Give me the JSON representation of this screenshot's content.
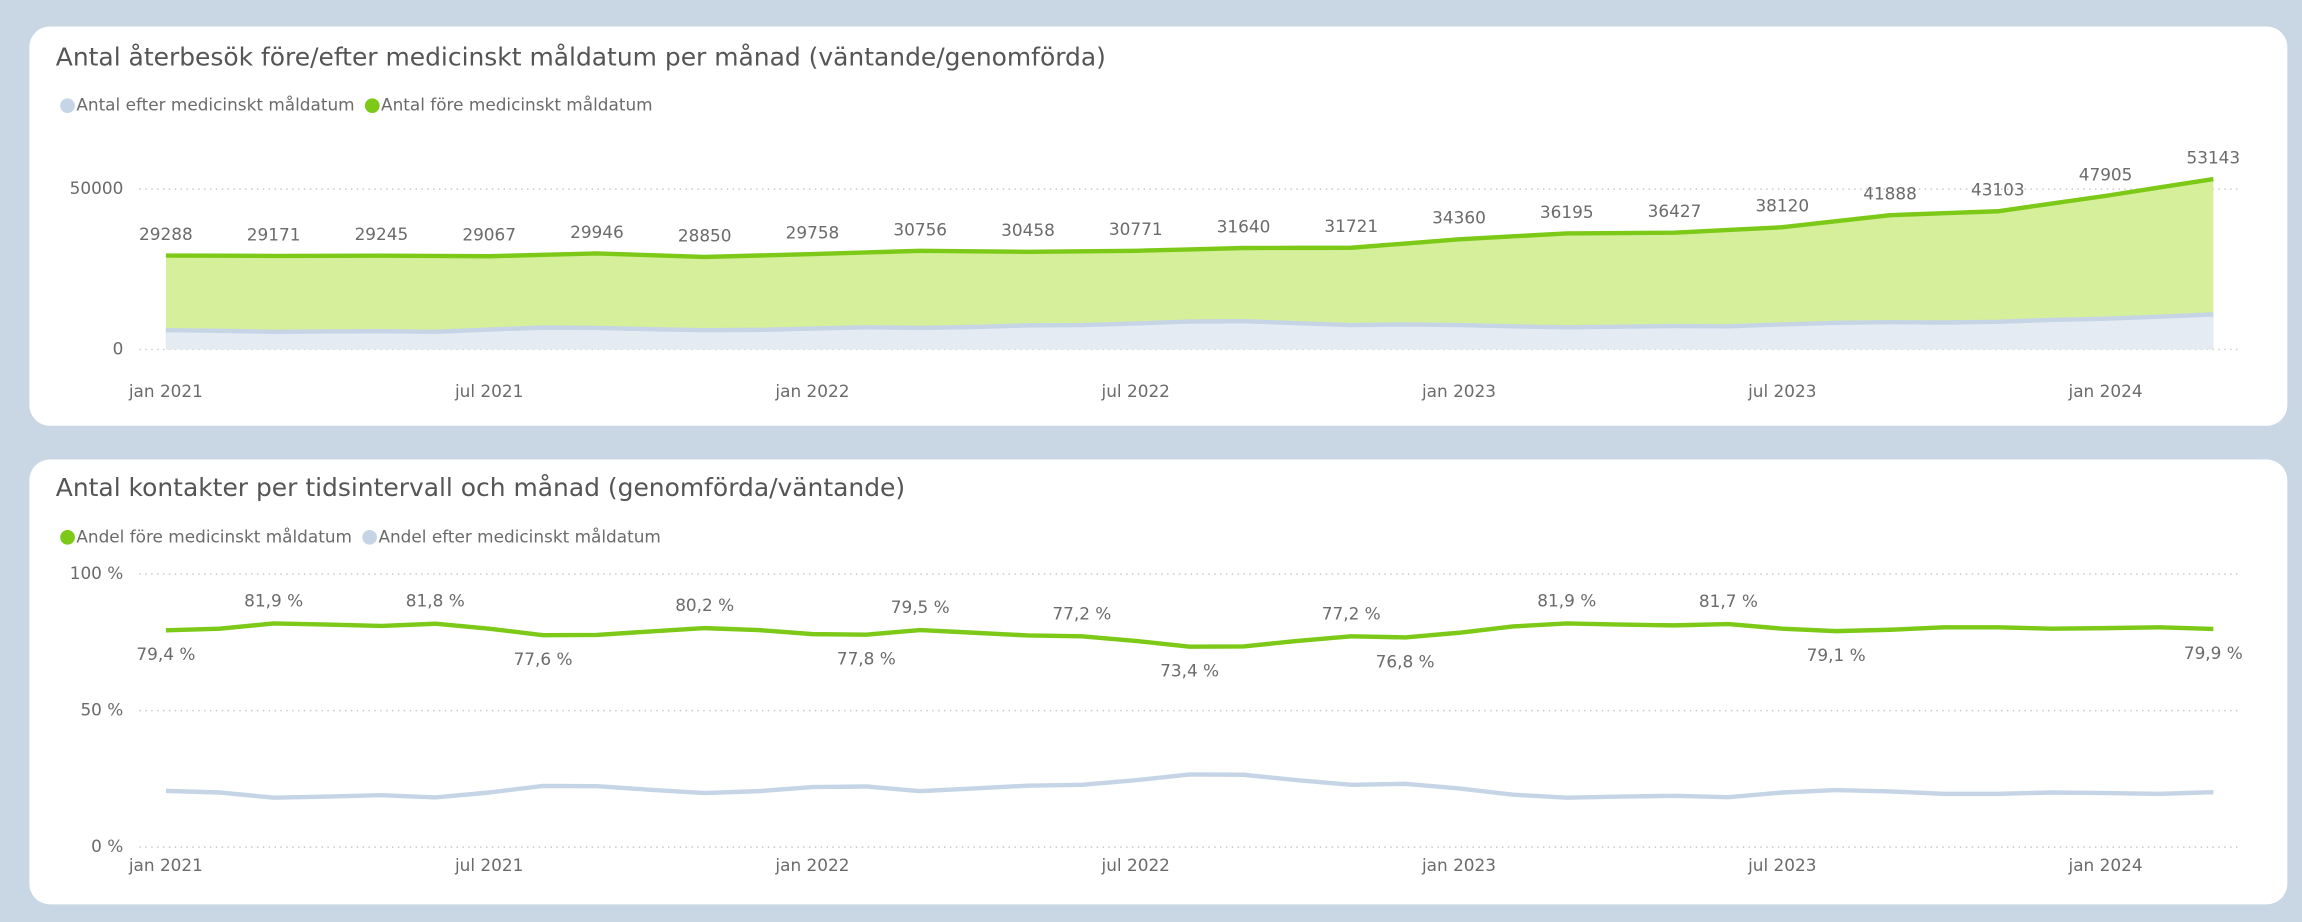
{
  "chart_data": [
    {
      "type": "area",
      "title": "Antal återbesök före/efter medicinskt måldatum per månad (väntande/genomförda)",
      "categories": [
        "jan 2021",
        null,
        null,
        null,
        null,
        null,
        "jul 2021",
        null,
        null,
        null,
        null,
        null,
        "jan 2022",
        null,
        null,
        null,
        null,
        null,
        "jul 2022",
        null,
        null,
        null,
        null,
        null,
        "jan 2023",
        null,
        null,
        null,
        null,
        null,
        "jul 2023",
        null,
        null,
        null,
        null,
        null,
        "jan 2024",
        null,
        null
      ],
      "series": [
        {
          "name": "Antal efter medicinskt måldatum",
          "color": "#c5d5e6",
          "fill": "#e4ebf3",
          "values": [
            6000,
            5800,
            5500,
            5600,
            5700,
            5500,
            6200,
            6800,
            6700,
            6300,
            6000,
            6100,
            6500,
            6900,
            6700,
            7000,
            7500,
            7600,
            8100,
            8700,
            8800,
            8200,
            7600,
            7800,
            7600,
            7200,
            6900,
            7100,
            7300,
            7200,
            7800,
            8300,
            8500,
            8400,
            8600,
            9200,
            9600,
            10200,
            10900
          ]
        },
        {
          "name": "Antal före medicinskt måldatum",
          "color": "#7cc917",
          "fill": "#d5ef9b",
          "values": [
            29288,
            29230,
            29171,
            29208,
            29245,
            29156,
            29067,
            29507,
            29946,
            29398,
            28850,
            29304,
            29758,
            30257,
            30756,
            30607,
            30458,
            30615,
            30771,
            31206,
            31640,
            31681,
            31721,
            33041,
            34360,
            35278,
            36195,
            36311,
            36427,
            37274,
            38120,
            40004,
            41888,
            42496,
            43103,
            45504,
            47905,
            50524,
            53143
          ]
        }
      ],
      "ylim": [
        0,
        60000
      ],
      "yticks": [
        0,
        50000
      ],
      "grid": true
    },
    {
      "type": "line",
      "title": "Antal kontakter per tidsintervall och månad (genomförda/väntande)",
      "categories": [
        "jan 2021",
        null,
        null,
        null,
        null,
        null,
        "jul 2021",
        null,
        null,
        null,
        null,
        null,
        "jan 2022",
        null,
        null,
        null,
        null,
        null,
        "jul 2022",
        null,
        null,
        null,
        null,
        null,
        "jan 2023",
        null,
        null,
        null,
        null,
        null,
        "jul 2023",
        null,
        null,
        null,
        null,
        null,
        "jan 2024",
        null,
        null
      ],
      "series": [
        {
          "name": "Andel före medicinskt måldatum",
          "color": "#7cc917",
          "values": [
            79.4,
            80.0,
            81.9,
            81.5,
            81.0,
            81.8,
            80.0,
            77.6,
            77.7,
            79.0,
            80.2,
            79.5,
            78.0,
            77.8,
            79.5,
            78.5,
            77.5,
            77.2,
            75.5,
            73.4,
            73.5,
            75.5,
            77.2,
            76.8,
            78.5,
            80.8,
            81.9,
            81.5,
            81.2,
            81.7,
            80.0,
            79.1,
            79.6,
            80.5,
            80.5,
            80.0,
            80.2,
            80.5,
            79.9
          ],
          "value_labels": [
            "79,4 %",
            null,
            "81,9 %",
            null,
            null,
            "81,8 %",
            null,
            "77,6 %",
            null,
            null,
            "80,2 %",
            null,
            null,
            "77,8 %",
            "79,5 %",
            null,
            null,
            "77,2 %",
            null,
            "73,4 %",
            null,
            null,
            "77,2 %",
            "76,8 %",
            null,
            null,
            "81,9 %",
            null,
            null,
            "81,7 %",
            null,
            "79,1 %",
            null,
            null,
            null,
            null,
            null,
            null,
            "79,9 %"
          ]
        },
        {
          "name": "Andel efter medicinskt måldatum",
          "color": "#c5d5e6",
          "values": [
            20.6,
            20.0,
            18.1,
            18.5,
            19.0,
            18.2,
            20.0,
            22.4,
            22.3,
            21.0,
            19.8,
            20.5,
            22.0,
            22.2,
            20.5,
            21.5,
            22.5,
            22.8,
            24.5,
            26.6,
            26.5,
            24.5,
            22.8,
            23.2,
            21.5,
            19.2,
            18.1,
            18.5,
            18.8,
            18.3,
            20.0,
            20.9,
            20.4,
            19.5,
            19.5,
            20.0,
            19.8,
            19.5,
            20.1
          ]
        }
      ],
      "ylim": [
        0,
        100
      ],
      "yticks": [
        {
          "value": 0,
          "label": "0 %"
        },
        {
          "value": 50,
          "label": "50 %"
        },
        {
          "value": 100,
          "label": "100 %"
        }
      ],
      "grid": true
    }
  ]
}
